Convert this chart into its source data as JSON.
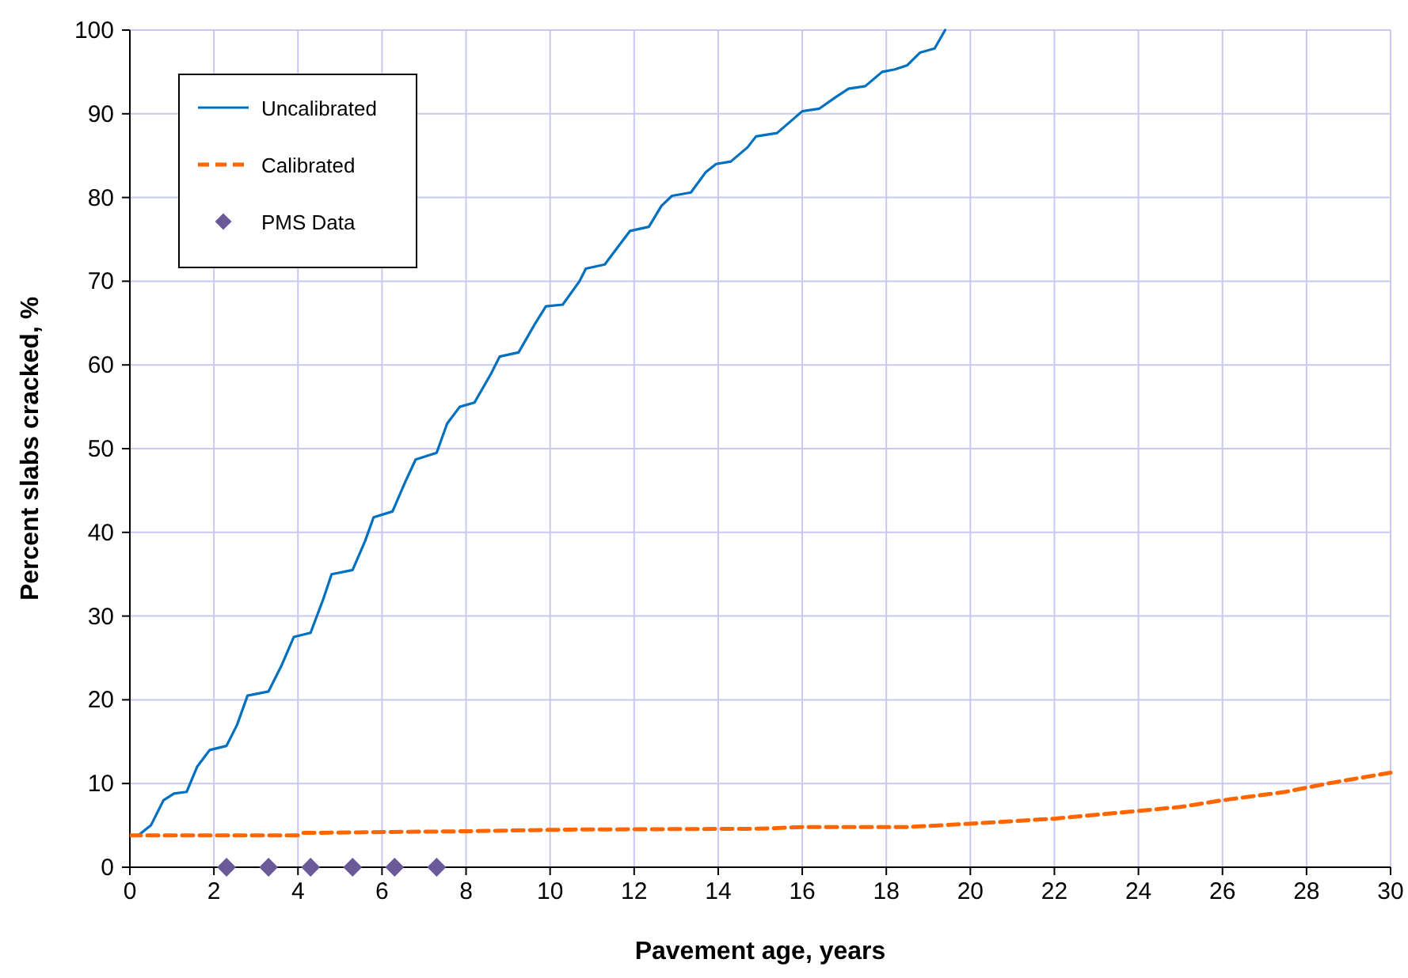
{
  "chart_data": {
    "type": "line",
    "xlabel": "Pavement age, years",
    "ylabel": "Percent slabs cracked, %",
    "xlim": [
      0,
      30
    ],
    "ylim": [
      0,
      100
    ],
    "xticks": [
      0,
      2,
      4,
      6,
      8,
      10,
      12,
      14,
      16,
      18,
      20,
      22,
      24,
      26,
      28,
      30
    ],
    "yticks": [
      0,
      10,
      20,
      30,
      40,
      50,
      60,
      70,
      80,
      90,
      100
    ],
    "grid": true,
    "legend": "top left",
    "series": [
      {
        "name": "Uncalibrated",
        "color": "#0070c0",
        "marker": "none",
        "line_style": "solid",
        "x": [
          0.2,
          0.5,
          0.8,
          1.05,
          1.35,
          1.6,
          1.9,
          2.3,
          2.55,
          2.8,
          3.3,
          3.6,
          3.9,
          4.3,
          4.6,
          4.8,
          5.3,
          5.6,
          5.8,
          6.25,
          6.55,
          6.8,
          7.3,
          7.55,
          7.85,
          8.2,
          8.6,
          8.8,
          9.25,
          9.65,
          9.9,
          10.3,
          10.7,
          10.85,
          11.3,
          11.6,
          11.9,
          12.35,
          12.65,
          12.9,
          13.35,
          13.7,
          13.95,
          14.3,
          14.7,
          14.9,
          15.4,
          15.7,
          16,
          16.4,
          16.8,
          17.1,
          17.5,
          17.9,
          18.2,
          18.5,
          18.8,
          19.15,
          19.4
        ],
        "values": [
          3.8,
          5,
          8,
          8.8,
          9,
          12,
          14,
          14.5,
          17,
          20.5,
          21,
          24,
          27.5,
          28,
          32,
          35,
          35.5,
          39,
          41.8,
          42.5,
          46,
          48.7,
          49.5,
          53,
          55,
          55.5,
          59,
          61,
          61.5,
          65,
          67,
          67.2,
          70,
          71.5,
          72,
          74,
          76,
          76.5,
          79,
          80.2,
          80.6,
          83,
          84,
          84.3,
          86,
          87.3,
          87.7,
          89,
          90.3,
          90.6,
          92,
          93,
          93.3,
          95,
          95.3,
          95.8,
          97.3,
          97.8,
          100
        ]
      },
      {
        "name": "Calibrated",
        "color": "#ff6600",
        "marker": "none",
        "line_style": "dashed",
        "x": [
          0,
          4,
          4.1,
          8,
          10.5,
          15,
          16,
          18.5,
          20,
          22,
          23.5,
          25,
          26,
          27.5,
          28.5,
          30
        ],
        "values": [
          3.8,
          3.8,
          4.1,
          4.3,
          4.5,
          4.6,
          4.8,
          4.8,
          5.2,
          5.8,
          6.5,
          7.2,
          8,
          9,
          10,
          11.3
        ]
      },
      {
        "name": "PMS Data",
        "type": "scatter",
        "color": "#6b5a9a",
        "marker": "diamond",
        "x": [
          2.3,
          3.3,
          4.3,
          5.3,
          6.3,
          7.3
        ],
        "values": [
          0,
          0,
          0,
          0,
          0,
          0
        ]
      }
    ]
  }
}
